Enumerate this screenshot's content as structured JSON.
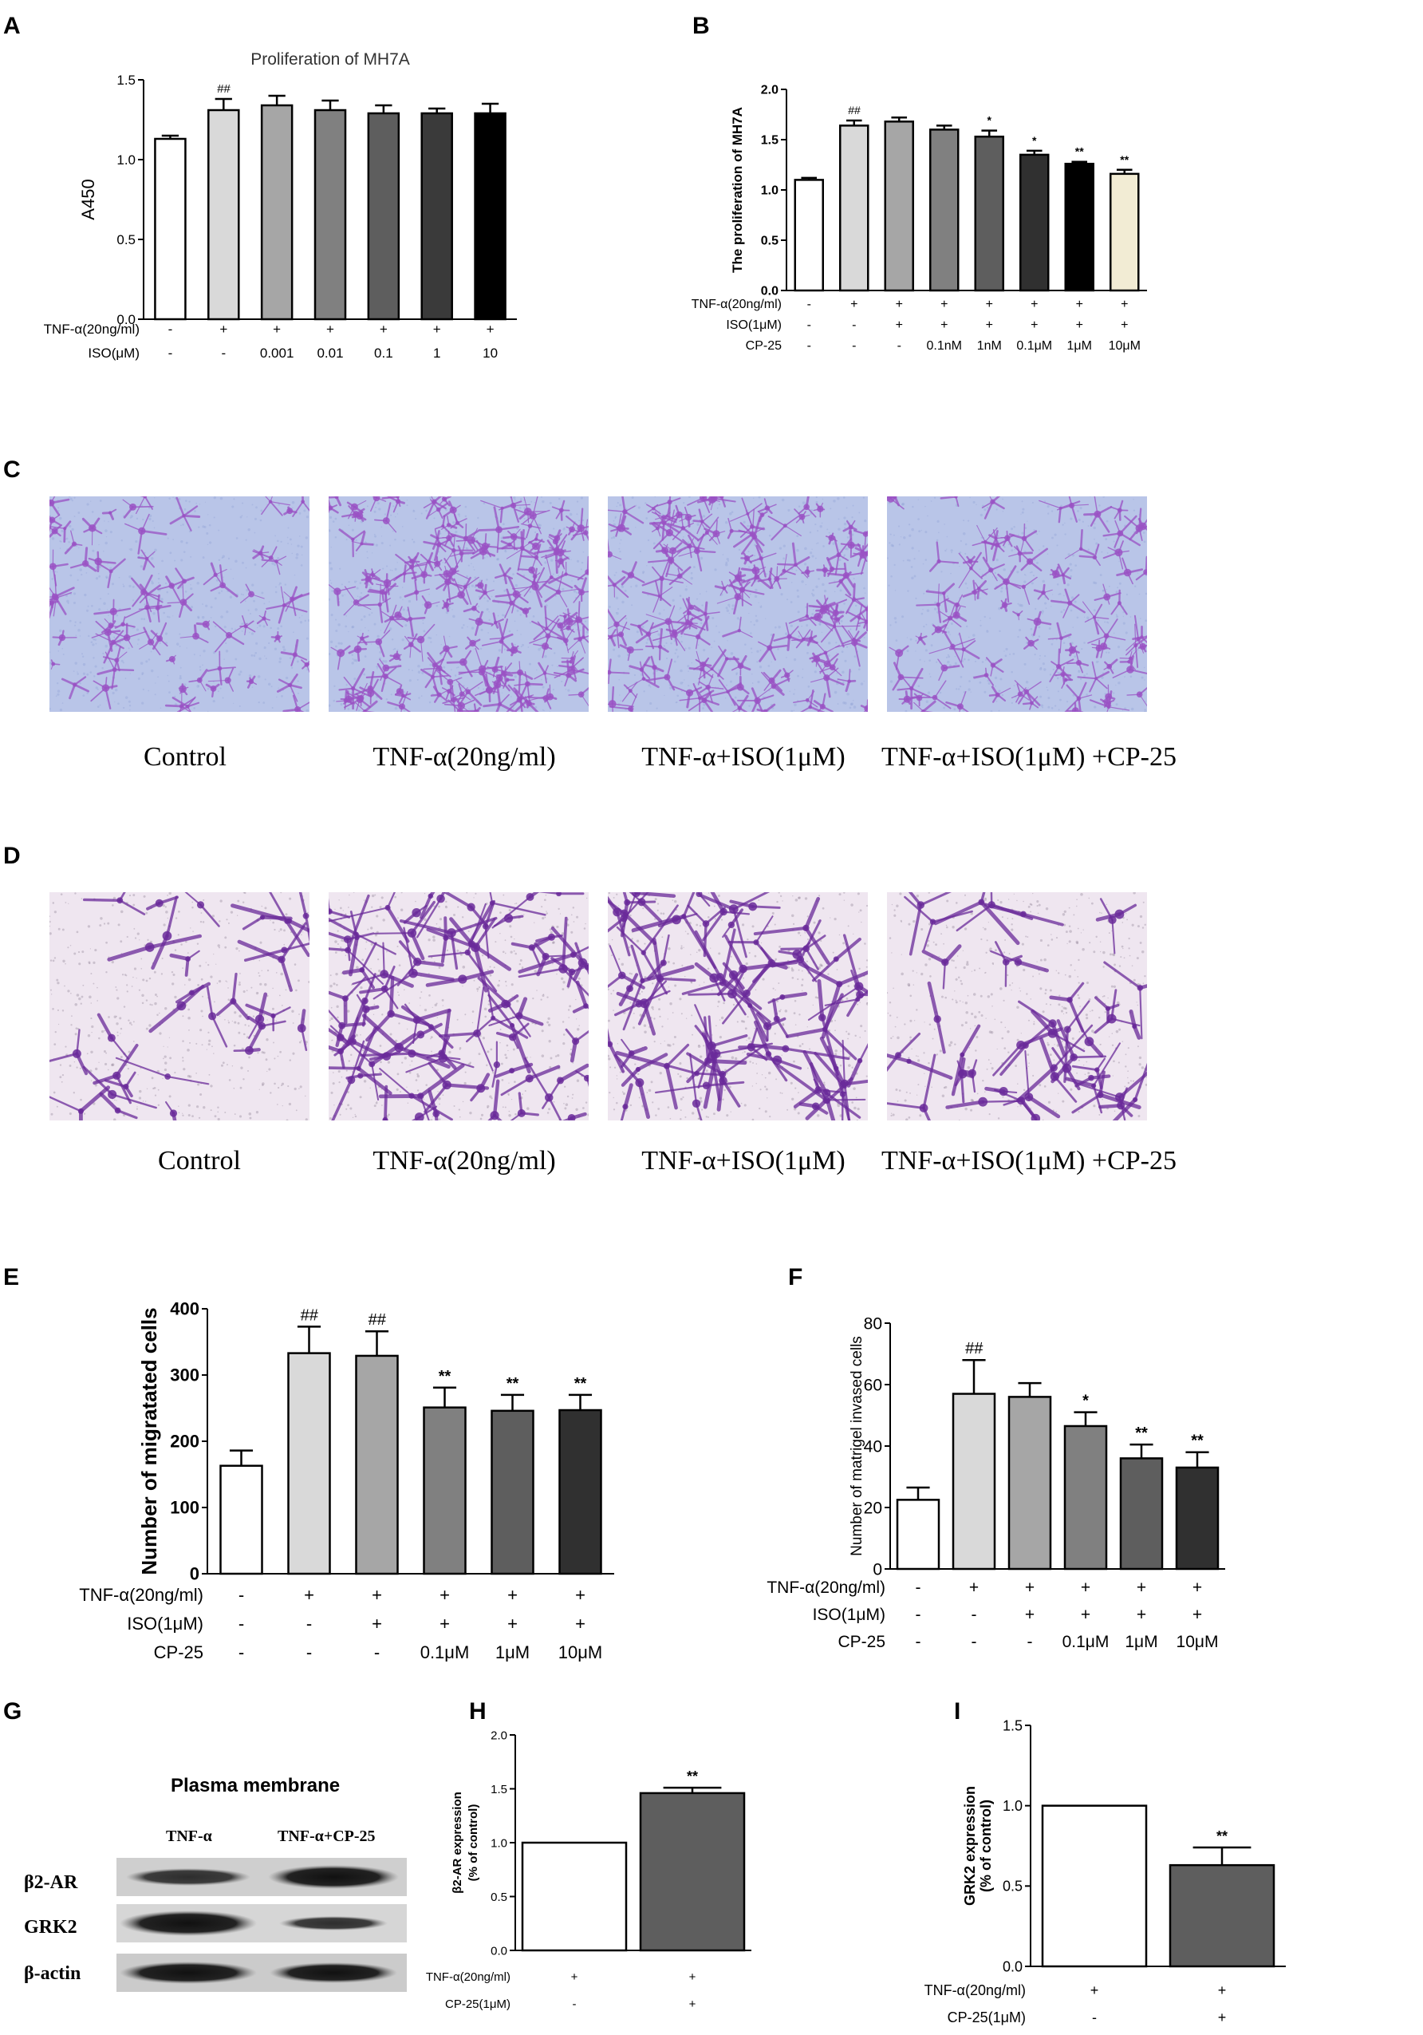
{
  "panels": {
    "A": "A",
    "B": "B",
    "C": "C",
    "D": "D",
    "E": "E",
    "F": "F",
    "G": "G",
    "H": "H",
    "I": "I"
  },
  "chart_data": [
    {
      "id": "A",
      "type": "bar",
      "title": "Proliferation of MH7A",
      "ylabel": "A450",
      "ylim": [
        0,
        1.5
      ],
      "yticks": [
        0.0,
        0.5,
        1.0,
        1.5
      ],
      "ytick_labels": [
        "0.0",
        "0.5",
        "1.0",
        "1.5"
      ],
      "values": [
        1.13,
        1.31,
        1.34,
        1.31,
        1.29,
        1.29,
        1.29
      ],
      "errors": [
        0.02,
        0.07,
        0.06,
        0.06,
        0.05,
        0.03,
        0.06
      ],
      "fills": [
        "#ffffff",
        "#d9d9d9",
        "#a6a6a6",
        "#808080",
        "#5e5e5e",
        "#3a3a3a",
        "#000000"
      ],
      "significance": [
        "",
        "##",
        "",
        "",
        "",
        "",
        ""
      ],
      "conditions": [
        {
          "label": "TNF-α(20ng/ml)",
          "values": [
            "-",
            "+",
            "+",
            "+",
            "+",
            "+",
            "+"
          ]
        },
        {
          "label": "ISO(μM)",
          "values": [
            "-",
            "-",
            "0.001",
            "0.01",
            "0.1",
            "1",
            "10"
          ]
        }
      ]
    },
    {
      "id": "B",
      "type": "bar",
      "title": "",
      "ylabel": "The proliferation of MH7A",
      "ylim": [
        0,
        2.0
      ],
      "yticks": [
        0.0,
        0.5,
        1.0,
        1.5,
        2.0
      ],
      "ytick_labels": [
        "0.0",
        "0.5",
        "1.0",
        "1.5",
        "2.0"
      ],
      "values": [
        1.1,
        1.64,
        1.68,
        1.6,
        1.53,
        1.35,
        1.26,
        1.16
      ],
      "errors": [
        0.02,
        0.05,
        0.04,
        0.04,
        0.06,
        0.04,
        0.02,
        0.04
      ],
      "fills": [
        "#ffffff",
        "#d9d9d9",
        "#a6a6a6",
        "#808080",
        "#5e5e5e",
        "#303030",
        "#000000",
        "#f2ecd4"
      ],
      "significance": [
        "",
        "##",
        "",
        "",
        "*",
        "*",
        "**",
        "**"
      ],
      "conditions": [
        {
          "label": "TNF-α(20ng/ml)",
          "values": [
            "-",
            "+",
            "+",
            "+",
            "+",
            "+",
            "+",
            "+"
          ]
        },
        {
          "label": "ISO(1μM)",
          "values": [
            "-",
            "-",
            "+",
            "+",
            "+",
            "+",
            "+",
            "+"
          ]
        },
        {
          "label": "CP-25",
          "values": [
            "-",
            "-",
            "-",
            "0.1nM",
            "1nM",
            "0.1μM",
            "1μM",
            "10μM"
          ]
        }
      ]
    },
    {
      "id": "E",
      "type": "bar",
      "title": "",
      "ylabel": "Number of migratated cells",
      "ylim": [
        0,
        400
      ],
      "yticks": [
        0,
        100,
        200,
        300,
        400
      ],
      "ytick_labels": [
        "0",
        "100",
        "200",
        "300",
        "400"
      ],
      "values": [
        163,
        333,
        329,
        251,
        246,
        247
      ],
      "errors": [
        23,
        40,
        37,
        30,
        24,
        23
      ],
      "fills": [
        "#ffffff",
        "#d9d9d9",
        "#a6a6a6",
        "#808080",
        "#5e5e5e",
        "#303030"
      ],
      "significance": [
        "",
        "##",
        "##",
        "**",
        "**",
        "**"
      ],
      "conditions": [
        {
          "label": "TNF-α(20ng/ml)",
          "values": [
            "-",
            "+",
            "+",
            "+",
            "+",
            "+"
          ]
        },
        {
          "label": "ISO(1μM)",
          "values": [
            "-",
            "-",
            "+",
            "+",
            "+",
            "+"
          ]
        },
        {
          "label": "CP-25",
          "values": [
            "-",
            "-",
            "-",
            "0.1μM",
            "1μM",
            "10μM"
          ]
        }
      ]
    },
    {
      "id": "F",
      "type": "bar",
      "title": "",
      "ylabel": "Number of matrigel invased cells",
      "ylim": [
        0,
        80
      ],
      "yticks": [
        0,
        20,
        40,
        60,
        80
      ],
      "ytick_labels": [
        "0",
        "20",
        "40",
        "60",
        "80"
      ],
      "values": [
        22.5,
        57,
        56,
        46.5,
        36,
        33
      ],
      "errors": [
        4,
        11,
        4.5,
        4.5,
        4.5,
        5
      ],
      "fills": [
        "#ffffff",
        "#d9d9d9",
        "#a6a6a6",
        "#808080",
        "#5e5e5e",
        "#303030"
      ],
      "significance": [
        "",
        "##",
        "",
        "*",
        "**",
        "**"
      ],
      "conditions": [
        {
          "label": "TNF-α(20ng/ml)",
          "values": [
            "-",
            "+",
            "+",
            "+",
            "+",
            "+"
          ]
        },
        {
          "label": "ISO(1μM)",
          "values": [
            "-",
            "-",
            "+",
            "+",
            "+",
            "+"
          ]
        },
        {
          "label": "CP-25",
          "values": [
            "-",
            "-",
            "-",
            "0.1μM",
            "1μM",
            "10μM"
          ]
        }
      ]
    },
    {
      "id": "H",
      "type": "bar",
      "title": "",
      "ylabel": "β2-AR expression (% of control)",
      "ylim": [
        0,
        2.0
      ],
      "yticks": [
        0.0,
        0.5,
        1.0,
        1.5,
        2.0
      ],
      "ytick_labels": [
        "0.0",
        "0.5",
        "1.0",
        "1.5",
        "2.0"
      ],
      "values": [
        1.0,
        1.46
      ],
      "errors": [
        0,
        0.05
      ],
      "fills": [
        "#ffffff",
        "#5e5e5e"
      ],
      "significance": [
        "",
        "**"
      ],
      "conditions": [
        {
          "label": "TNF-α(20ng/ml)",
          "values": [
            "+",
            "+"
          ]
        },
        {
          "label": "CP-25(1μM)",
          "values": [
            "-",
            "+"
          ]
        }
      ]
    },
    {
      "id": "I",
      "type": "bar",
      "title": "",
      "ylabel": "GRK2 expression (% of control)",
      "ylim": [
        0,
        1.5
      ],
      "yticks": [
        0.0,
        0.5,
        1.0,
        1.5
      ],
      "ytick_labels": [
        "0.0",
        "0.5",
        "1.0",
        "1.5"
      ],
      "values": [
        1.0,
        0.63
      ],
      "errors": [
        0,
        0.11
      ],
      "fills": [
        "#ffffff",
        "#5e5e5e"
      ],
      "significance": [
        "",
        "**"
      ],
      "conditions": [
        {
          "label": "TNF-α(20ng/ml)",
          "values": [
            "+",
            "+"
          ]
        },
        {
          "label": "CP-25(1μM)",
          "values": [
            "-",
            "+"
          ]
        }
      ]
    }
  ],
  "micrographs": {
    "C": {
      "captions": [
        "Control",
        "TNF-α(20ng/ml)",
        "TNF-α+ISO(1μM)",
        "TNF-α+ISO(1μM) +CP-25"
      ],
      "background": "#b9c5e8",
      "stain": "#9a52c4"
    },
    "D": {
      "captions": [
        "Control",
        "TNF-α(20ng/ml)",
        "TNF-α+ISO(1μM)",
        "TNF-α+ISO(1μM) +CP-25"
      ],
      "background": "#efe6f0",
      "stain": "#6a2a9a"
    }
  },
  "blot": {
    "title": "Plasma membrane",
    "lanes": [
      "TNF-α",
      "TNF-α+CP-25"
    ],
    "rows": [
      "β2-AR",
      "GRK2",
      "β-actin"
    ]
  }
}
